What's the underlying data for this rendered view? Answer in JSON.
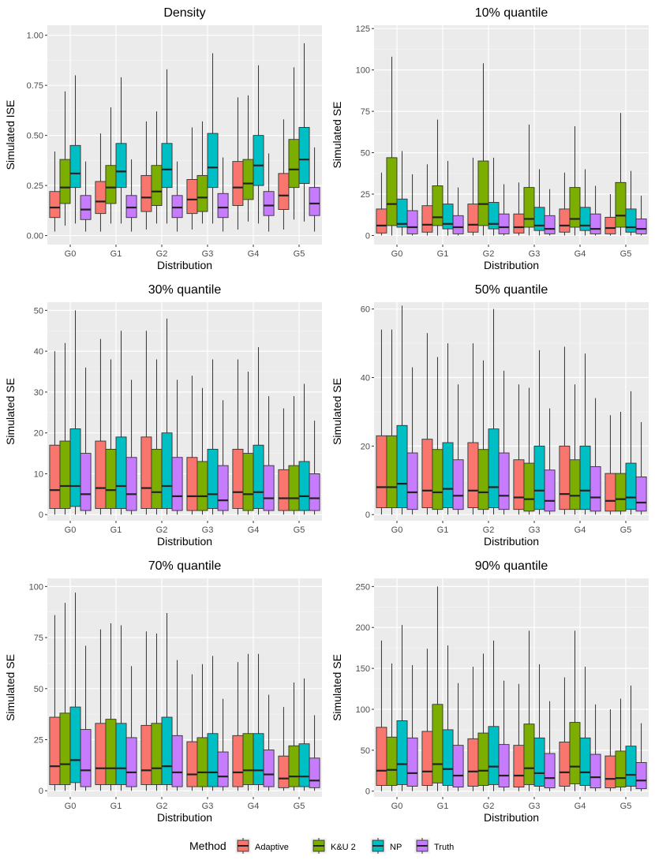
{
  "colors": {
    "panel_bg": "#ebebeb",
    "grid_major": "#ffffff",
    "grid_minor": "#f5f5f5",
    "tick_text": "#4d4d4d"
  },
  "chart_data": [
    {
      "type": "boxplot",
      "title": "Density",
      "xlabel": "Distribution",
      "ylabel": "Simulated ISE",
      "categories": [
        "G0",
        "G1",
        "G2",
        "G3",
        "G4",
        "G5"
      ],
      "ylim": [
        -0.045,
        1.05
      ],
      "yticks": [
        0,
        0.25,
        0.5,
        0.75,
        1
      ],
      "ytick_labels": [
        "0.00",
        "0.25",
        "0.50",
        "0.75",
        "1.00"
      ],
      "boxes": [
        [
          [
            0.02,
            0.09,
            0.14,
            0.22,
            0.42
          ],
          [
            0.05,
            0.16,
            0.24,
            0.38,
            0.72
          ],
          [
            0.06,
            0.24,
            0.31,
            0.45,
            0.8
          ],
          [
            0.02,
            0.08,
            0.13,
            0.2,
            0.37
          ]
        ],
        [
          [
            0.02,
            0.11,
            0.17,
            0.27,
            0.51
          ],
          [
            0.06,
            0.16,
            0.24,
            0.35,
            0.64
          ],
          [
            0.06,
            0.24,
            0.32,
            0.46,
            0.79
          ],
          [
            0.02,
            0.09,
            0.14,
            0.2,
            0.38
          ]
        ],
        [
          [
            0.03,
            0.12,
            0.19,
            0.3,
            0.57
          ],
          [
            0.06,
            0.15,
            0.22,
            0.35,
            0.62
          ],
          [
            0.06,
            0.24,
            0.33,
            0.46,
            0.83
          ],
          [
            0.02,
            0.09,
            0.14,
            0.2,
            0.37
          ]
        ],
        [
          [
            0.03,
            0.11,
            0.18,
            0.28,
            0.54
          ],
          [
            0.06,
            0.12,
            0.19,
            0.3,
            0.57
          ],
          [
            0.06,
            0.24,
            0.34,
            0.51,
            0.91
          ],
          [
            0.02,
            0.09,
            0.14,
            0.21,
            0.39
          ]
        ],
        [
          [
            0.03,
            0.15,
            0.24,
            0.37,
            0.69
          ],
          [
            0.07,
            0.18,
            0.26,
            0.38,
            0.7
          ],
          [
            0.06,
            0.25,
            0.35,
            0.5,
            0.85
          ],
          [
            0.02,
            0.1,
            0.15,
            0.22,
            0.41
          ]
        ],
        [
          [
            0.03,
            0.13,
            0.2,
            0.31,
            0.58
          ],
          [
            0.08,
            0.24,
            0.33,
            0.48,
            0.84
          ],
          [
            0.07,
            0.26,
            0.38,
            0.54,
            0.96
          ],
          [
            0.02,
            0.1,
            0.16,
            0.24,
            0.44
          ]
        ]
      ]
    },
    {
      "type": "boxplot",
      "title": "10% quantile",
      "xlabel": "Distribution",
      "ylabel": "Simulated SE",
      "categories": [
        "G0",
        "G1",
        "G2",
        "G3",
        "G4",
        "G5"
      ],
      "ylim": [
        -5.5,
        127
      ],
      "yticks": [
        0,
        25,
        50,
        75,
        100,
        125
      ],
      "ytick_labels": [
        "0",
        "25",
        "50",
        "75",
        "100",
        "125"
      ],
      "boxes": [
        [
          [
            0,
            1.5,
            6,
            16,
            38
          ],
          [
            0,
            6,
            19,
            47,
            108
          ],
          [
            0,
            5,
            7,
            22,
            51
          ],
          [
            0,
            1,
            5,
            15,
            37
          ]
        ],
        [
          [
            0,
            2,
            6.5,
            18,
            43
          ],
          [
            0,
            6,
            11,
            30,
            70
          ],
          [
            0,
            4,
            7,
            19,
            45
          ],
          [
            0,
            1,
            5,
            12,
            29
          ]
        ],
        [
          [
            0,
            2,
            6.5,
            19,
            47
          ],
          [
            0,
            6,
            19,
            45,
            104
          ],
          [
            0,
            4,
            7,
            20,
            47
          ],
          [
            0,
            1,
            5,
            13,
            31
          ]
        ],
        [
          [
            0,
            1.5,
            5,
            13,
            32
          ],
          [
            0,
            5,
            10,
            29,
            67
          ],
          [
            0,
            3,
            6,
            17,
            40
          ],
          [
            0,
            1,
            4,
            12,
            28
          ]
        ],
        [
          [
            0,
            2,
            6,
            16,
            38
          ],
          [
            0,
            5,
            10,
            29,
            66
          ],
          [
            0,
            3,
            6,
            17,
            40
          ],
          [
            0,
            1,
            4,
            13,
            30
          ]
        ],
        [
          [
            0,
            1,
            4.5,
            11,
            25
          ],
          [
            0,
            5,
            12,
            32,
            74
          ],
          [
            0,
            2,
            5,
            16,
            39
          ],
          [
            0,
            1,
            4,
            10,
            24
          ]
        ]
      ]
    },
    {
      "type": "boxplot",
      "title": "30% quantile",
      "xlabel": "Distribution",
      "ylabel": "Simulated SE",
      "categories": [
        "G0",
        "G1",
        "G2",
        "G3",
        "G4",
        "G5"
      ],
      "ylim": [
        -1.5,
        52
      ],
      "yticks": [
        0,
        10,
        20,
        30,
        40,
        50
      ],
      "ytick_labels": [
        "0",
        "10",
        "20",
        "30",
        "40",
        "50"
      ],
      "boxes": [
        [
          [
            0,
            1.5,
            6,
            17,
            40
          ],
          [
            0,
            1.5,
            7,
            18,
            42
          ],
          [
            0,
            2,
            7,
            21,
            50
          ],
          [
            0,
            1,
            5,
            15,
            36
          ]
        ],
        [
          [
            0,
            1.5,
            6.5,
            18,
            43
          ],
          [
            0,
            1.5,
            6,
            16,
            38
          ],
          [
            0,
            1.5,
            7,
            19,
            45
          ],
          [
            0,
            1,
            5,
            14,
            33
          ]
        ],
        [
          [
            0,
            1.5,
            6.5,
            19,
            45
          ],
          [
            0,
            1.5,
            5.5,
            16,
            38
          ],
          [
            0,
            1.5,
            7,
            20,
            48
          ],
          [
            0,
            1,
            4.5,
            14,
            33
          ]
        ],
        [
          [
            0,
            1,
            4.5,
            14,
            34
          ],
          [
            0,
            1,
            4.5,
            13,
            31
          ],
          [
            0,
            1.5,
            5,
            16,
            38
          ],
          [
            0,
            1,
            3.5,
            12,
            28
          ]
        ],
        [
          [
            0,
            1.5,
            5.5,
            16,
            38
          ],
          [
            0,
            1,
            5,
            15,
            35
          ],
          [
            0,
            1.5,
            5.5,
            17,
            41
          ],
          [
            0,
            1,
            4,
            12,
            29
          ]
        ],
        [
          [
            0,
            1,
            4,
            11,
            26
          ],
          [
            0,
            1,
            4,
            12,
            29
          ],
          [
            0,
            1,
            4.5,
            13,
            32
          ],
          [
            0,
            1,
            4,
            10,
            23
          ]
        ]
      ]
    },
    {
      "type": "boxplot",
      "title": "50% quantile",
      "xlabel": "Distribution",
      "ylabel": "Simulated SE",
      "categories": [
        "G0",
        "G1",
        "G2",
        "G3",
        "G4",
        "G5"
      ],
      "ylim": [
        -1.8,
        62
      ],
      "yticks": [
        0,
        20,
        40,
        60
      ],
      "ytick_labels": [
        "0",
        "20",
        "40",
        "60"
      ],
      "boxes": [
        [
          [
            0,
            2,
            8,
            23,
            54
          ],
          [
            0,
            2,
            8,
            23,
            54
          ],
          [
            0,
            2,
            9,
            26,
            61
          ],
          [
            0,
            1.5,
            6.5,
            18,
            43
          ]
        ],
        [
          [
            0,
            2,
            7,
            22,
            53
          ],
          [
            0,
            1.5,
            6.5,
            19,
            46
          ],
          [
            0,
            2,
            7.5,
            21,
            50
          ],
          [
            0,
            1.5,
            5.5,
            16,
            38
          ]
        ],
        [
          [
            0,
            2,
            7,
            21,
            50
          ],
          [
            0,
            1.5,
            6.5,
            19,
            45
          ],
          [
            0,
            2,
            8,
            25,
            60
          ],
          [
            0,
            1.5,
            5.5,
            18,
            42
          ]
        ],
        [
          [
            0,
            1.5,
            5,
            16,
            38
          ],
          [
            0,
            1,
            4.5,
            15,
            37
          ],
          [
            0,
            1.5,
            7,
            20,
            48
          ],
          [
            0,
            1,
            4,
            13,
            31
          ]
        ],
        [
          [
            0,
            1.5,
            6,
            20,
            49
          ],
          [
            0,
            1.5,
            5.5,
            16,
            38
          ],
          [
            0,
            1.5,
            7,
            20,
            47
          ],
          [
            0,
            1,
            5,
            14,
            34
          ]
        ],
        [
          [
            0,
            1,
            4,
            12,
            29
          ],
          [
            0,
            1,
            4.5,
            12,
            30
          ],
          [
            0,
            1.5,
            5,
            15,
            36
          ],
          [
            0,
            1,
            3.5,
            11,
            27
          ]
        ]
      ]
    },
    {
      "type": "boxplot",
      "title": "70% quantile",
      "xlabel": "Distribution",
      "ylabel": "Simulated SE",
      "categories": [
        "G0",
        "G1",
        "G2",
        "G3",
        "G4",
        "G5"
      ],
      "ylim": [
        -3,
        104
      ],
      "yticks": [
        0,
        25,
        50,
        75,
        100
      ],
      "ytick_labels": [
        "0",
        "25",
        "50",
        "75",
        "100"
      ],
      "boxes": [
        [
          [
            0,
            3,
            12,
            36,
            86
          ],
          [
            0,
            3,
            13,
            38,
            92
          ],
          [
            0,
            4,
            15,
            41,
            97
          ],
          [
            0,
            2,
            10,
            30,
            71
          ]
        ],
        [
          [
            0,
            3,
            11,
            33,
            79
          ],
          [
            0,
            3,
            11,
            35,
            82
          ],
          [
            0,
            3,
            11,
            33,
            81
          ],
          [
            0,
            2,
            9,
            26,
            61
          ]
        ],
        [
          [
            0,
            3,
            10,
            32,
            78
          ],
          [
            0,
            3,
            11,
            33,
            77
          ],
          [
            0,
            3,
            12,
            36,
            87
          ],
          [
            0,
            2,
            9,
            27,
            64
          ]
        ],
        [
          [
            0,
            2,
            8,
            24,
            57
          ],
          [
            0,
            2,
            9,
            26,
            62
          ],
          [
            0,
            2,
            9,
            28,
            66
          ],
          [
            0,
            2,
            7,
            19,
            45
          ]
        ],
        [
          [
            0,
            2,
            9,
            27,
            63
          ],
          [
            0,
            3,
            10,
            28,
            67
          ],
          [
            0,
            3,
            10,
            28,
            67
          ],
          [
            0,
            2,
            8,
            20,
            47
          ]
        ],
        [
          [
            0,
            1.5,
            6,
            17,
            41
          ],
          [
            0,
            2,
            7,
            22,
            53
          ],
          [
            0,
            2,
            7,
            23,
            55
          ],
          [
            0,
            1.5,
            5,
            16,
            37
          ]
        ]
      ]
    },
    {
      "type": "boxplot",
      "title": "90% quantile",
      "xlabel": "Distribution",
      "ylabel": "Simulated SE",
      "categories": [
        "G0",
        "G1",
        "G2",
        "G3",
        "G4",
        "G5"
      ],
      "ylim": [
        -7,
        260
      ],
      "yticks": [
        0,
        50,
        100,
        150,
        200,
        250
      ],
      "ytick_labels": [
        "0",
        "50",
        "100",
        "150",
        "200",
        "250"
      ],
      "boxes": [
        [
          [
            0,
            7,
            25,
            78,
            184
          ],
          [
            0,
            7,
            26,
            66,
            156
          ],
          [
            0,
            8,
            33,
            86,
            203
          ],
          [
            0,
            6,
            22,
            65,
            154
          ]
        ],
        [
          [
            0,
            7,
            24,
            73,
            174
          ],
          [
            0,
            10,
            33,
            106,
            250
          ],
          [
            0,
            7,
            27,
            75,
            178
          ],
          [
            0,
            5,
            19,
            56,
            132
          ]
        ],
        [
          [
            0,
            6,
            24,
            64,
            152
          ],
          [
            0,
            7,
            25,
            71,
            168
          ],
          [
            0,
            8,
            30,
            79,
            184
          ],
          [
            0,
            5,
            19,
            57,
            135
          ]
        ],
        [
          [
            0,
            5,
            19,
            56,
            131
          ],
          [
            0,
            8,
            28,
            82,
            196
          ],
          [
            0,
            6,
            22,
            65,
            155
          ],
          [
            0,
            4,
            16,
            46,
            110
          ]
        ],
        [
          [
            0,
            6,
            23,
            60,
            139
          ],
          [
            0,
            9,
            30,
            84,
            196
          ],
          [
            0,
            7,
            23,
            65,
            152
          ],
          [
            0,
            4,
            17,
            45,
            106
          ]
        ],
        [
          [
            0,
            4,
            15,
            43,
            100
          ],
          [
            0,
            5,
            16,
            49,
            113
          ],
          [
            0,
            6,
            20,
            55,
            129
          ],
          [
            0,
            3,
            13,
            35,
            83
          ]
        ]
      ]
    }
  ],
  "legend": {
    "title": "Method",
    "items": [
      {
        "label": "Adaptive",
        "color": "#F8766D"
      },
      {
        "label": "K&U 2",
        "color": "#7CAE00"
      },
      {
        "label": "NP",
        "color": "#00BFC4"
      },
      {
        "label": "Truth",
        "color": "#C77CFF"
      }
    ]
  }
}
